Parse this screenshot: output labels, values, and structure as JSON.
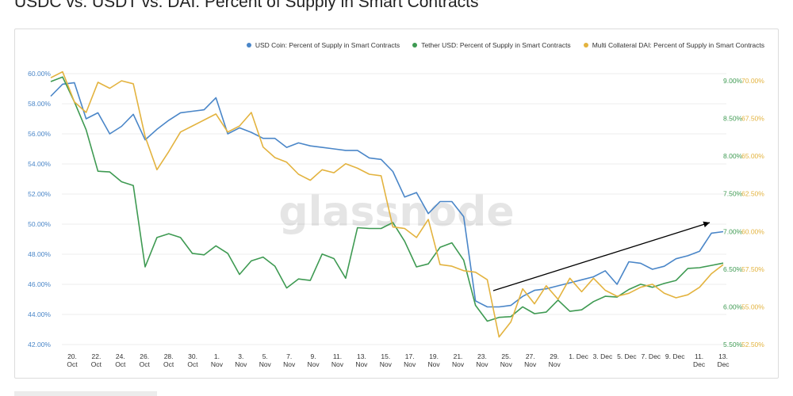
{
  "page": {
    "title": "USDC vs. USDT vs. DAI: Percent of Supply in Smart Contracts"
  },
  "colors": {
    "usdc": "#4a86c8",
    "usdt": "#3e9a52",
    "dai": "#e3b33f",
    "grid": "#ececec",
    "arrow": "#000000",
    "left_axis": "#4a86c8"
  },
  "watermark": "glassnode",
  "chart_data": {
    "type": "line",
    "title": "",
    "x_labels": [
      [
        "20.",
        "Oct"
      ],
      [
        "22.",
        "Oct"
      ],
      [
        "24.",
        "Oct"
      ],
      [
        "26.",
        "Oct"
      ],
      [
        "28.",
        "Oct"
      ],
      [
        "30.",
        "Oct"
      ],
      [
        "1.",
        "Nov"
      ],
      [
        "3.",
        "Nov"
      ],
      [
        "5.",
        "Nov"
      ],
      [
        "7.",
        "Nov"
      ],
      [
        "9.",
        "Nov"
      ],
      [
        "11.",
        "Nov"
      ],
      [
        "13.",
        "Nov"
      ],
      [
        "15.",
        "Nov"
      ],
      [
        "17.",
        "Nov"
      ],
      [
        "19.",
        "Nov"
      ],
      [
        "21.",
        "Nov"
      ],
      [
        "23.",
        "Nov"
      ],
      [
        "25.",
        "Nov"
      ],
      [
        "27.",
        "Nov"
      ],
      [
        "29.",
        "Nov"
      ],
      [
        "1. Dec",
        ""
      ],
      [
        "3. Dec",
        ""
      ],
      [
        "5. Dec",
        ""
      ],
      [
        "7. Dec",
        ""
      ],
      [
        "9. Dec",
        ""
      ],
      [
        "11.",
        "Dec"
      ],
      [
        "13.",
        "Dec"
      ]
    ],
    "legend": [
      {
        "label": "USD Coin: Percent of Supply in Smart Contracts",
        "color": "#4a86c8"
      },
      {
        "label": "Tether USD: Percent of Supply in Smart Contracts",
        "color": "#3e9a52"
      },
      {
        "label": "Multi Collateral DAI: Percent of Supply in Smart Contracts",
        "color": "#e3b33f"
      }
    ],
    "axes": {
      "left": {
        "ticks": [
          "60.00%",
          "58.00%",
          "56.00%",
          "54.00%",
          "52.00%",
          "50.00%",
          "48.00%",
          "46.00%",
          "44.00%",
          "42.00%"
        ],
        "range": [
          42,
          60
        ],
        "color": "#4a86c8"
      },
      "right_usdt": {
        "ticks": [
          "9.00%",
          "8.50%",
          "8.00%",
          "7.50%",
          "7.00%",
          "6.50%",
          "6.00%",
          "5.50%"
        ],
        "range": [
          5.5,
          9.0
        ],
        "color": "#3e9a52"
      },
      "right_dai": {
        "ticks": [
          "70.00%",
          "67.50%",
          "65.00%",
          "62.50%",
          "60.00%",
          "57.50%",
          "55.00%",
          "52.50%"
        ],
        "range": [
          52.5,
          70.0
        ],
        "color": "#e3b33f"
      }
    },
    "series": [
      {
        "name": "USD Coin: Percent of Supply in Smart Contracts",
        "axis": "left",
        "color": "#4a86c8",
        "values": [
          58.5,
          59.3,
          59.4,
          57.0,
          57.4,
          56.0,
          56.5,
          57.3,
          55.6,
          56.3,
          56.9,
          57.4,
          57.5,
          57.6,
          58.4,
          56.0,
          56.4,
          56.1,
          55.7,
          55.7,
          55.1,
          55.4,
          55.2,
          55.1,
          55.0,
          54.9,
          54.9,
          54.4,
          54.3,
          53.5,
          51.8,
          52.1,
          50.7,
          51.5,
          51.5,
          50.5,
          44.9,
          44.5,
          44.5,
          44.6,
          45.2,
          45.6,
          45.7,
          45.9,
          46.1,
          46.3,
          46.5,
          46.9,
          46.0,
          47.5,
          47.4,
          47.0,
          47.2,
          47.7,
          47.9,
          48.2,
          49.4,
          49.5
        ]
      },
      {
        "name": "Tether USD: Percent of Supply in Smart Contracts",
        "axis": "right_usdt",
        "color": "#3e9a52",
        "values": [
          8.99,
          9.05,
          8.72,
          8.35,
          7.8,
          7.79,
          7.66,
          7.61,
          6.53,
          6.92,
          6.97,
          6.92,
          6.71,
          6.69,
          6.81,
          6.71,
          6.43,
          6.61,
          6.66,
          6.54,
          6.25,
          6.37,
          6.35,
          6.7,
          6.64,
          6.38,
          7.05,
          7.04,
          7.04,
          7.12,
          6.87,
          6.53,
          6.57,
          6.79,
          6.85,
          6.62,
          6.02,
          5.81,
          5.86,
          5.87,
          6.0,
          5.91,
          5.93,
          6.09,
          5.94,
          5.96,
          6.07,
          6.14,
          6.13,
          6.23,
          6.3,
          6.26,
          6.31,
          6.35,
          6.51,
          6.52,
          6.55,
          6.58
        ]
      },
      {
        "name": "Multi Collateral DAI: Percent of Supply in Smart Contracts",
        "axis": "right_dai",
        "color": "#e3b33f",
        "values": [
          70.2,
          70.6,
          68.6,
          67.9,
          69.9,
          69.5,
          70.0,
          69.8,
          66.3,
          64.1,
          65.3,
          66.6,
          67.0,
          67.4,
          67.8,
          66.6,
          67.0,
          67.9,
          65.6,
          64.9,
          64.6,
          63.8,
          63.4,
          64.1,
          63.9,
          64.5,
          64.2,
          63.8,
          63.7,
          60.3,
          60.2,
          59.6,
          60.8,
          57.8,
          57.7,
          57.4,
          57.3,
          56.8,
          53.0,
          54.0,
          56.2,
          55.2,
          56.4,
          55.5,
          56.9,
          56.0,
          56.9,
          56.1,
          55.7,
          55.9,
          56.3,
          56.5,
          55.9,
          55.6,
          55.8,
          56.3,
          57.2,
          57.8
        ]
      }
    ],
    "annotations": [
      {
        "type": "arrow",
        "from": [
          "24. Nov",
          "upward trend start"
        ],
        "to": [
          "12. Dec",
          "upward trend end"
        ]
      }
    ],
    "grid": "horizontal",
    "legend_position": "top-right"
  }
}
